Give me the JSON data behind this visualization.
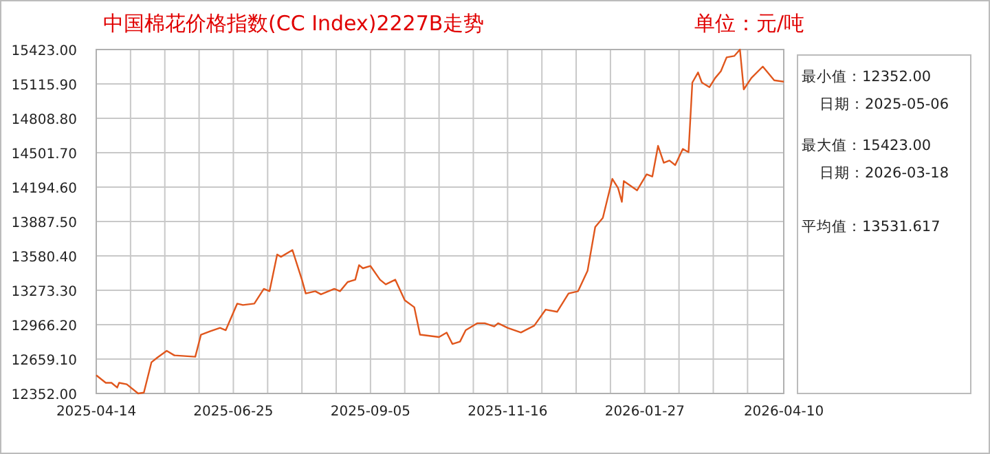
{
  "chart_data": {
    "type": "line",
    "title": "中国棉花价格指数(CC Index)2227B走势",
    "subtitle": "单位：元/吨",
    "annotations": [
      "最小值：12352.00",
      "日期：2025-05-06",
      "最大值：15423.00",
      "日期：2026-03-18",
      "平均值：13531.617"
    ],
    "grid": true,
    "xlim": [
      "2025-04-14",
      "2026-04-10"
    ],
    "xticks": [
      "2025-04-14",
      {
        "value": "2025-05-02",
        "label": null
      },
      {
        "value": "2025-05-20",
        "label": null
      },
      {
        "value": "2025-06-07",
        "label": null
      },
      "2025-06-25",
      {
        "value": "2025-07-13",
        "label": null
      },
      {
        "value": "2025-07-31",
        "label": null
      },
      {
        "value": "2025-08-18",
        "label": null
      },
      "2025-09-05",
      {
        "value": "2025-09-23",
        "label": null
      },
      {
        "value": "2025-10-11",
        "label": null
      },
      {
        "value": "2025-10-29",
        "label": null
      },
      "2025-11-16",
      {
        "value": "2025-12-04",
        "label": null
      },
      {
        "value": "2025-12-22",
        "label": null
      },
      {
        "value": "2026-01-09",
        "label": null
      },
      "2026-01-27",
      {
        "value": "2026-02-14",
        "label": null
      },
      {
        "value": "2026-03-04",
        "label": null
      },
      {
        "value": "2026-03-22",
        "label": null
      },
      "2026-04-10"
    ],
    "ylim": [
      12352,
      15423
    ],
    "yticks": [
      {
        "value": 12352,
        "label": "12352.00"
      },
      {
        "value": 12659.1,
        "label": "12659.10"
      },
      {
        "value": 12966.2,
        "label": "12966.20"
      },
      {
        "value": 13273.3,
        "label": "13273.30"
      },
      {
        "value": 13580.4,
        "label": "13580.40"
      },
      {
        "value": 13887.5,
        "label": "13887.50"
      },
      {
        "value": 14194.6,
        "label": "14194.60"
      },
      {
        "value": 14501.7,
        "label": "14501.70"
      },
      {
        "value": 14808.8,
        "label": "14808.80"
      },
      {
        "value": 15115.9,
        "label": "15115.90"
      },
      {
        "value": 15423,
        "label": "15423.00"
      }
    ],
    "series": [
      {
        "color": "#e0561c",
        "x": [
          "2025-04-14",
          "2025-04-19",
          "2025-04-22",
          "2025-04-25",
          "2025-04-26",
          "2025-04-30",
          "2025-05-06",
          "2025-05-09",
          "2025-05-13",
          "2025-05-16",
          "2025-05-21",
          "2025-05-25",
          "2025-06-05",
          "2025-06-08",
          "2025-06-13",
          "2025-06-18",
          "2025-06-21",
          "2025-06-27",
          "2025-06-30",
          "2025-07-06",
          "2025-07-11",
          "2025-07-14",
          "2025-07-18",
          "2025-07-20",
          "2025-07-26",
          "2025-07-31",
          "2025-08-02",
          "2025-08-07",
          "2025-08-10",
          "2025-08-17",
          "2025-08-20",
          "2025-08-24",
          "2025-08-28",
          "2025-08-30",
          "2025-09-01",
          "2025-09-05",
          "2025-09-10",
          "2025-09-13",
          "2025-09-18",
          "2025-09-23",
          "2025-09-28",
          "2025-10-01",
          "2025-10-11",
          "2025-10-15",
          "2025-10-18",
          "2025-10-22",
          "2025-10-25",
          "2025-10-31",
          "2025-11-04",
          "2025-11-09",
          "2025-11-11",
          "2025-11-16",
          "2025-11-23",
          "2025-11-30",
          "2025-12-06",
          "2025-12-12",
          "2025-12-18",
          "2025-12-23",
          "2025-12-28",
          "2026-01-01",
          "2026-01-05",
          "2026-01-10",
          "2026-01-13",
          "2026-01-15",
          "2026-01-16",
          "2026-01-23",
          "2026-01-28",
          "2026-01-31",
          "2026-02-03",
          "2026-02-06",
          "2026-02-09",
          "2026-02-12",
          "2026-02-16",
          "2026-02-19",
          "2026-02-21",
          "2026-02-24",
          "2026-02-26",
          "2026-03-02",
          "2026-03-05",
          "2026-03-08",
          "2026-03-11",
          "2026-03-15",
          "2026-03-18",
          "2026-03-20",
          "2026-03-24",
          "2026-03-30",
          "2026-04-02",
          "2026-04-05",
          "2026-04-10"
        ],
        "values": [
          12515,
          12447,
          12447,
          12405,
          12447,
          12434,
          12352,
          12360,
          12631,
          12671,
          12733,
          12692,
          12680,
          12877,
          12909,
          12938,
          12917,
          13154,
          13142,
          13154,
          13286,
          13265,
          13593,
          13572,
          13633,
          13368,
          13245,
          13265,
          13237,
          13286,
          13265,
          13347,
          13368,
          13498,
          13470,
          13490,
          13368,
          13326,
          13368,
          13184,
          13122,
          12877,
          12856,
          12896,
          12794,
          12815,
          12917,
          12979,
          12979,
          12950,
          12979,
          12938,
          12896,
          12958,
          13101,
          13081,
          13245,
          13265,
          13449,
          13838,
          13920,
          14268,
          14186,
          14063,
          14248,
          14166,
          14309,
          14289,
          14563,
          14412,
          14432,
          14391,
          14535,
          14506,
          15128,
          15218,
          15128,
          15087,
          15169,
          15230,
          15353,
          15365,
          15423,
          15067,
          15169,
          15271,
          15210,
          15148,
          15136
        ]
      }
    ]
  }
}
